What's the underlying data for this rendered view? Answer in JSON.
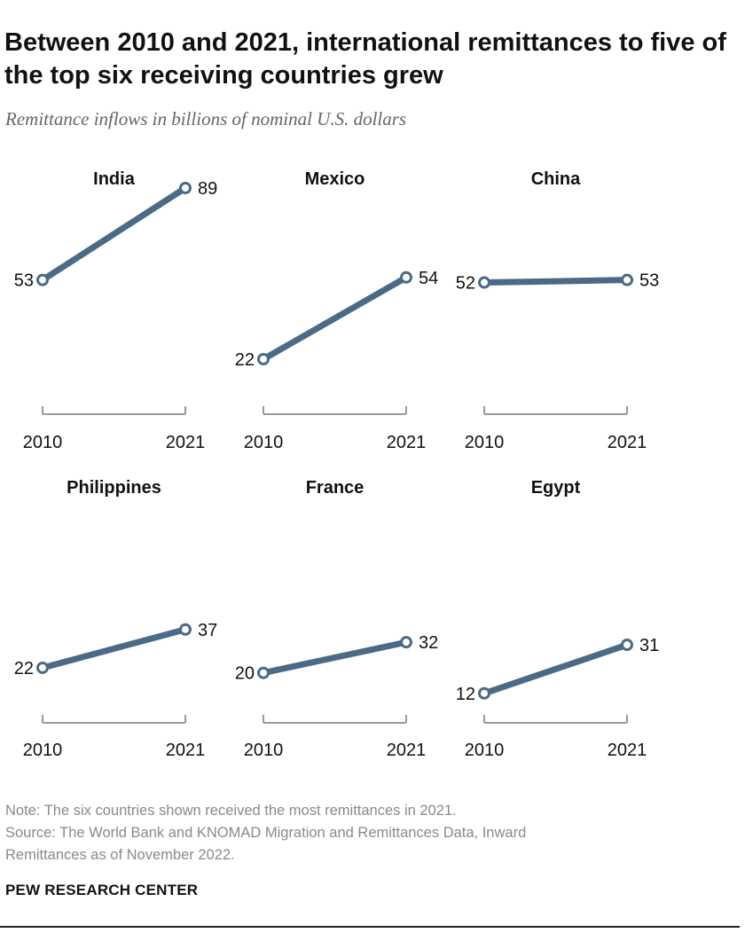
{
  "title": "Between 2010 and 2021, international remittances to five of the top six receiving countries grew",
  "subtitle": "Remittance inflows in billions of nominal U.S. dollars",
  "note": "Note: The six countries shown received the most remittances in 2021.",
  "source_line1": "Source: The World Bank and KNOMAD Migration and Remittances Data, Inward",
  "source_line2": "Remittances as of November 2022.",
  "brand": "PEW RESEARCH CENTER",
  "colors": {
    "line": "#4a6a85",
    "axis": "#9a9a9a",
    "text": "#111111",
    "muted": "#8a8a8a"
  },
  "chart_data": [
    {
      "type": "line",
      "title": "India",
      "x": [
        "2010",
        "2021"
      ],
      "values": [
        53,
        89
      ]
    },
    {
      "type": "line",
      "title": "Mexico",
      "x": [
        "2010",
        "2021"
      ],
      "values": [
        22,
        54
      ]
    },
    {
      "type": "line",
      "title": "China",
      "x": [
        "2010",
        "2021"
      ],
      "values": [
        52,
        53
      ]
    },
    {
      "type": "line",
      "title": "Philippines",
      "x": [
        "2010",
        "2021"
      ],
      "values": [
        22,
        37
      ]
    },
    {
      "type": "line",
      "title": "France",
      "x": [
        "2010",
        "2021"
      ],
      "values": [
        20,
        32
      ]
    },
    {
      "type": "line",
      "title": "Egypt",
      "x": [
        "2010",
        "2021"
      ],
      "values": [
        12,
        31
      ]
    }
  ]
}
